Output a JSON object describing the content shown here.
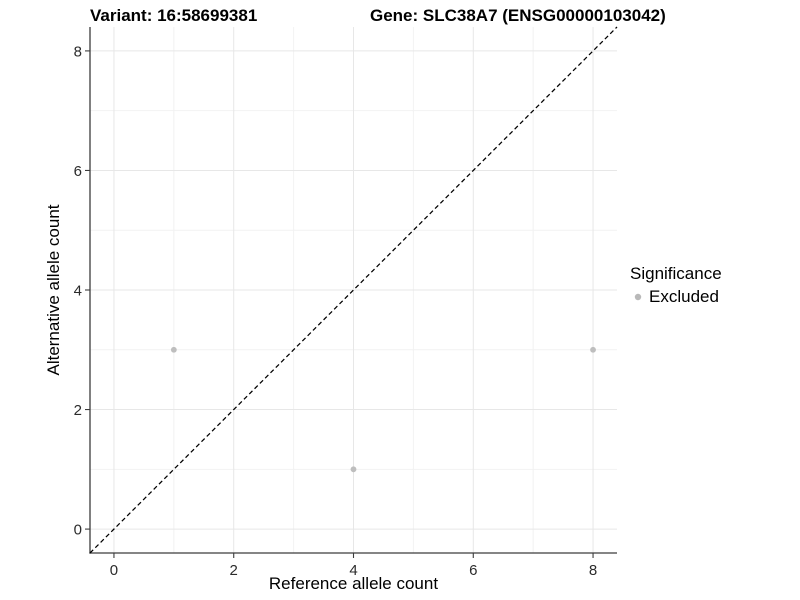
{
  "chart_data": {
    "type": "scatter",
    "title_left": "Variant: 16:58699381",
    "title_right": "Gene: SLC38A7 (ENSG00000103042)",
    "xlabel": "Reference allele count",
    "ylabel": "Alternative allele count",
    "xlim": [
      -0.4,
      8.4
    ],
    "ylim": [
      -0.4,
      8.4
    ],
    "x_ticks": [
      0,
      2,
      4,
      6,
      8
    ],
    "x_minor_ticks": [
      1,
      3,
      5,
      7
    ],
    "y_ticks": [
      0,
      2,
      4,
      6,
      8
    ],
    "y_minor_ticks": [
      1,
      3,
      5,
      7
    ],
    "grid": "major and minor, light gray on white",
    "legend": {
      "position": "right",
      "title": "Significance",
      "items": [
        {
          "label": "Excluded",
          "color": "#b9b9b9"
        }
      ]
    },
    "series": [
      {
        "name": "Excluded",
        "color": "#bebebe",
        "points": [
          [
            1,
            3
          ],
          [
            4,
            1
          ],
          [
            8,
            3
          ]
        ]
      }
    ],
    "reference_line": {
      "style": "dashed",
      "color": "#000000",
      "from": [
        -0.4,
        -0.4
      ],
      "to": [
        8.4,
        8.4
      ],
      "dash": [
        4.5,
        3
      ]
    },
    "colors": {
      "background": "#ffffff",
      "grid_major": "#e7e7e7",
      "grid_minor": "#f2f2f2",
      "axis_line": "#3c3c3c",
      "tick_label": "#2b2b2b",
      "title": "#000000",
      "point": "#bebebe"
    }
  }
}
